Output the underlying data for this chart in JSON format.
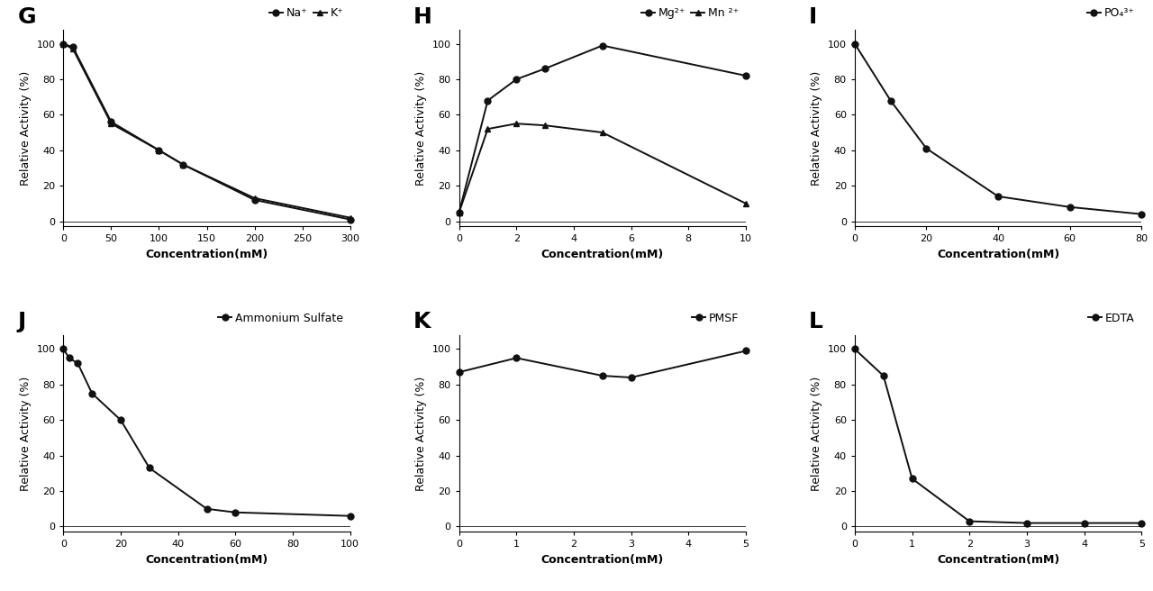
{
  "G": {
    "label": "G",
    "legend_labels": [
      "Na⁺",
      "K⁺"
    ],
    "markers": [
      "o",
      "^"
    ],
    "series": [
      {
        "x": [
          0,
          10,
          50,
          100,
          125,
          200,
          300
        ],
        "y": [
          100,
          98,
          56,
          40,
          32,
          12,
          1
        ]
      },
      {
        "x": [
          0,
          10,
          50,
          100,
          125,
          200,
          300
        ],
        "y": [
          100,
          97,
          55,
          40,
          32,
          13,
          2
        ]
      }
    ],
    "xlim": [
      0,
      300
    ],
    "xticks": [
      0,
      50,
      100,
      150,
      200,
      250,
      300
    ],
    "ylim": [
      -3,
      108
    ],
    "yticks": [
      0,
      20,
      40,
      60,
      80,
      100
    ],
    "xlabel": "Concentration(mM)",
    "ylabel": "Relative Activity (%)"
  },
  "H": {
    "label": "H",
    "legend_labels": [
      "Mg²⁺",
      "Mn ²⁺"
    ],
    "markers": [
      "o",
      "^"
    ],
    "series": [
      {
        "x": [
          0,
          1,
          2,
          3,
          5,
          10
        ],
        "y": [
          5,
          68,
          80,
          86,
          99,
          82
        ]
      },
      {
        "x": [
          0,
          1,
          2,
          3,
          5,
          10
        ],
        "y": [
          5,
          52,
          55,
          54,
          50,
          10
        ]
      }
    ],
    "xlim": [
      0,
      10
    ],
    "xticks": [
      0,
      2,
      4,
      6,
      8,
      10
    ],
    "ylim": [
      -3,
      108
    ],
    "yticks": [
      0,
      20,
      40,
      60,
      80,
      100
    ],
    "xlabel": "Concentration(mM)",
    "ylabel": "Relative Activity (%)"
  },
  "I": {
    "label": "I",
    "legend_labels": [
      "PO₄³⁺"
    ],
    "markers": [
      "o"
    ],
    "series": [
      {
        "x": [
          0,
          10,
          20,
          40,
          60,
          80
        ],
        "y": [
          100,
          68,
          41,
          14,
          8,
          4
        ]
      }
    ],
    "xlim": [
      0,
      80
    ],
    "xticks": [
      0,
      20,
      40,
      60,
      80
    ],
    "ylim": [
      -3,
      108
    ],
    "yticks": [
      0,
      20,
      40,
      60,
      80,
      100
    ],
    "xlabel": "Concentration(mM)",
    "ylabel": "Relative Activity (%)"
  },
  "J": {
    "label": "J",
    "legend_labels": [
      "Ammonium Sulfate"
    ],
    "markers": [
      "o"
    ],
    "series": [
      {
        "x": [
          0,
          2,
          5,
          10,
          20,
          30,
          50,
          60,
          100
        ],
        "y": [
          100,
          95,
          92,
          75,
          60,
          33,
          10,
          8,
          6
        ]
      }
    ],
    "xlim": [
      0,
      100
    ],
    "xticks": [
      0,
      20,
      40,
      60,
      80,
      100
    ],
    "ylim": [
      -3,
      108
    ],
    "yticks": [
      0,
      20,
      40,
      60,
      80,
      100
    ],
    "xlabel": "Concentration(mM)",
    "ylabel": "Relative Activity (%)"
  },
  "K": {
    "label": "K",
    "legend_labels": [
      "PMSF"
    ],
    "markers": [
      "o"
    ],
    "series": [
      {
        "x": [
          0,
          1,
          2.5,
          3,
          5
        ],
        "y": [
          87,
          95,
          85,
          84,
          99
        ]
      }
    ],
    "xlim": [
      0,
      5
    ],
    "xticks": [
      0,
      1,
      2,
      3,
      4,
      5
    ],
    "ylim": [
      -3,
      108
    ],
    "yticks": [
      0,
      20,
      40,
      60,
      80,
      100
    ],
    "xlabel": "Concentration(mM)",
    "ylabel": "Relative Activity (%)"
  },
  "L": {
    "label": "L",
    "legend_labels": [
      "EDTA"
    ],
    "markers": [
      "o"
    ],
    "series": [
      {
        "x": [
          0,
          0.5,
          1,
          2,
          3,
          4,
          5
        ],
        "y": [
          100,
          85,
          27,
          3,
          2,
          2,
          2
        ]
      }
    ],
    "xlim": [
      0,
      5
    ],
    "xticks": [
      0,
      1,
      2,
      3,
      4,
      5
    ],
    "ylim": [
      -3,
      108
    ],
    "yticks": [
      0,
      20,
      40,
      60,
      80,
      100
    ],
    "xlabel": "Concentration(mM)",
    "ylabel": "Relative Activity (%)"
  },
  "line_color": "#111111",
  "marker_size": 5,
  "line_width": 1.4,
  "label_fontsize": 18,
  "axis_label_fontsize": 9,
  "tick_fontsize": 8,
  "legend_fontsize": 9,
  "background_color": "#ffffff"
}
